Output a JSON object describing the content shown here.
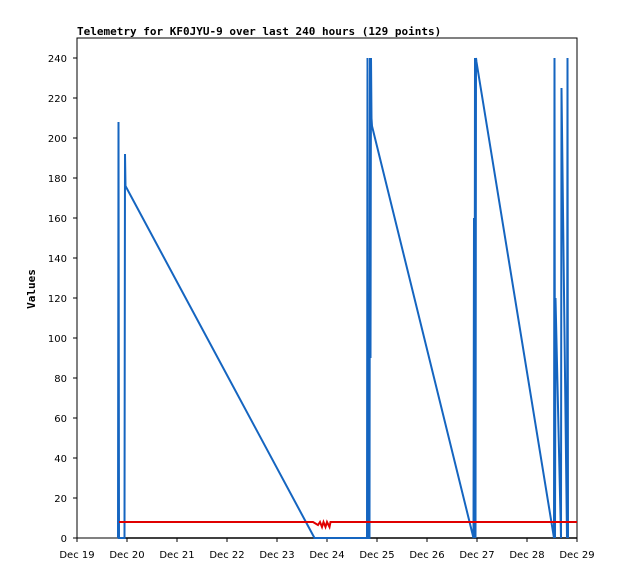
{
  "chart_data": {
    "type": "line",
    "title": "Telemetry for KF0JYU-9 over last 240 hours (129 points)",
    "xlabel": "",
    "ylabel": "Values",
    "xlim": [
      0,
      10
    ],
    "ylim": [
      0,
      250
    ],
    "x_tick_labels": [
      "Dec 19",
      "Dec 20",
      "Dec 21",
      "Dec 22",
      "Dec 23",
      "Dec 24",
      "Dec 25",
      "Dec 26",
      "Dec 27",
      "Dec 28",
      "Dec 29"
    ],
    "x_tick_values": [
      0,
      1,
      2,
      3,
      4,
      5,
      6,
      7,
      8,
      9,
      10
    ],
    "y_ticks": [
      0,
      20,
      40,
      60,
      80,
      100,
      120,
      140,
      160,
      180,
      200,
      220,
      240
    ],
    "grid": false,
    "colors": {
      "series1": "#1565c0",
      "series2": "#e00000",
      "series3": "#000000"
    },
    "series": [
      {
        "x": [
          0.82,
          0.83,
          0.84,
          0.95,
          0.96,
          0.97,
          4.75,
          5.8,
          5.81,
          5.82,
          5.85,
          5.86,
          5.87,
          5.88,
          5.89,
          5.9,
          7.93,
          7.94,
          7.95,
          7.96,
          7.97,
          7.98,
          7.99,
          9.54,
          9.55,
          9.56,
          9.57,
          9.68,
          9.69,
          9.8,
          9.81,
          9.82
        ],
        "y": [
          0,
          208,
          0,
          0,
          192,
          176,
          0,
          0,
          240,
          0,
          0,
          240,
          90,
          240,
          210,
          206,
          0,
          160,
          0,
          240,
          0,
          240,
          238,
          0,
          240,
          0,
          120,
          0,
          225,
          0,
          240,
          0
        ]
      },
      {
        "x": [
          0.84,
          4.72,
          4.82,
          4.86,
          4.9,
          4.93,
          4.97,
          5.0,
          5.05,
          5.07,
          10.0
        ],
        "y": [
          8,
          8,
          6.5,
          8,
          5.5,
          8,
          5.5,
          8,
          5.5,
          8,
          8
        ]
      },
      {
        "x": [
          0.84,
          10.0
        ],
        "y": [
          0,
          0
        ]
      }
    ]
  }
}
